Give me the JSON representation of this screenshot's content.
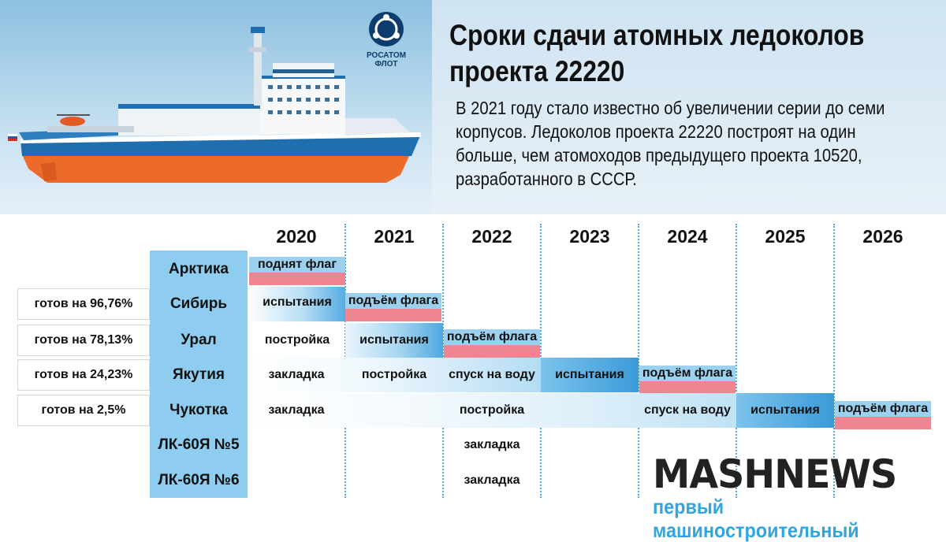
{
  "header": {
    "title": "Сроки сдачи атомных ледоколов проекта 22220",
    "description": "В 2021 году стало известно об увеличении серии до семи корпусов. Ледоколов проекта 22220 построят на один больше, чем атомоходов предыдущего проекта 10520, разработанного в СССР.",
    "logo_line1": "РОСАТОМ",
    "logo_line2": "ФЛОТ"
  },
  "years": [
    "2020",
    "2021",
    "2022",
    "2023",
    "2024",
    "2025",
    "2026"
  ],
  "vessels": [
    {
      "name": "Арктика",
      "ready": ""
    },
    {
      "name": "Сибирь",
      "ready": "готов на 96,76%"
    },
    {
      "name": "Урал",
      "ready": "готов на 78,13%"
    },
    {
      "name": "Якутия",
      "ready": "готов на 24,23%"
    },
    {
      "name": "Чукотка",
      "ready": "готов на 2,5%"
    },
    {
      "name": "ЛК-60Я №5",
      "ready": ""
    },
    {
      "name": "ЛК-60Я №6",
      "ready": ""
    }
  ],
  "stages": {
    "arktika_2020": "поднят флаг",
    "sibir_2020": "испытания",
    "sibir_2021": "подъём флага",
    "ural_2020": "постройка",
    "ural_2021": "испытания",
    "ural_2022": "подъём флага",
    "yakutia_2020": "закладка",
    "yakutia_2021": "постройка",
    "yakutia_2022": "спуск на воду",
    "yakutia_2023": "испытания",
    "yakutia_2024": "подъём флага",
    "chukotka_2020": "закладка",
    "chukotka_2022": "постройка",
    "chukotka_2024": "спуск на воду",
    "chukotka_2025": "испытания",
    "chukotka_2026": "подъём флага",
    "lk5_2022": "закладка",
    "lk6_2022": "закладка"
  },
  "brand": {
    "name": "MASHNEWS",
    "tagline": "первый машиностроительный"
  },
  "colors": {
    "vessel_column": "#8ecdf0",
    "trial_band": "#3b9bd9",
    "flag_top": "#9cd0ef",
    "flag_bottom": "#ef8591",
    "brand_accent": "#31a5e0"
  }
}
